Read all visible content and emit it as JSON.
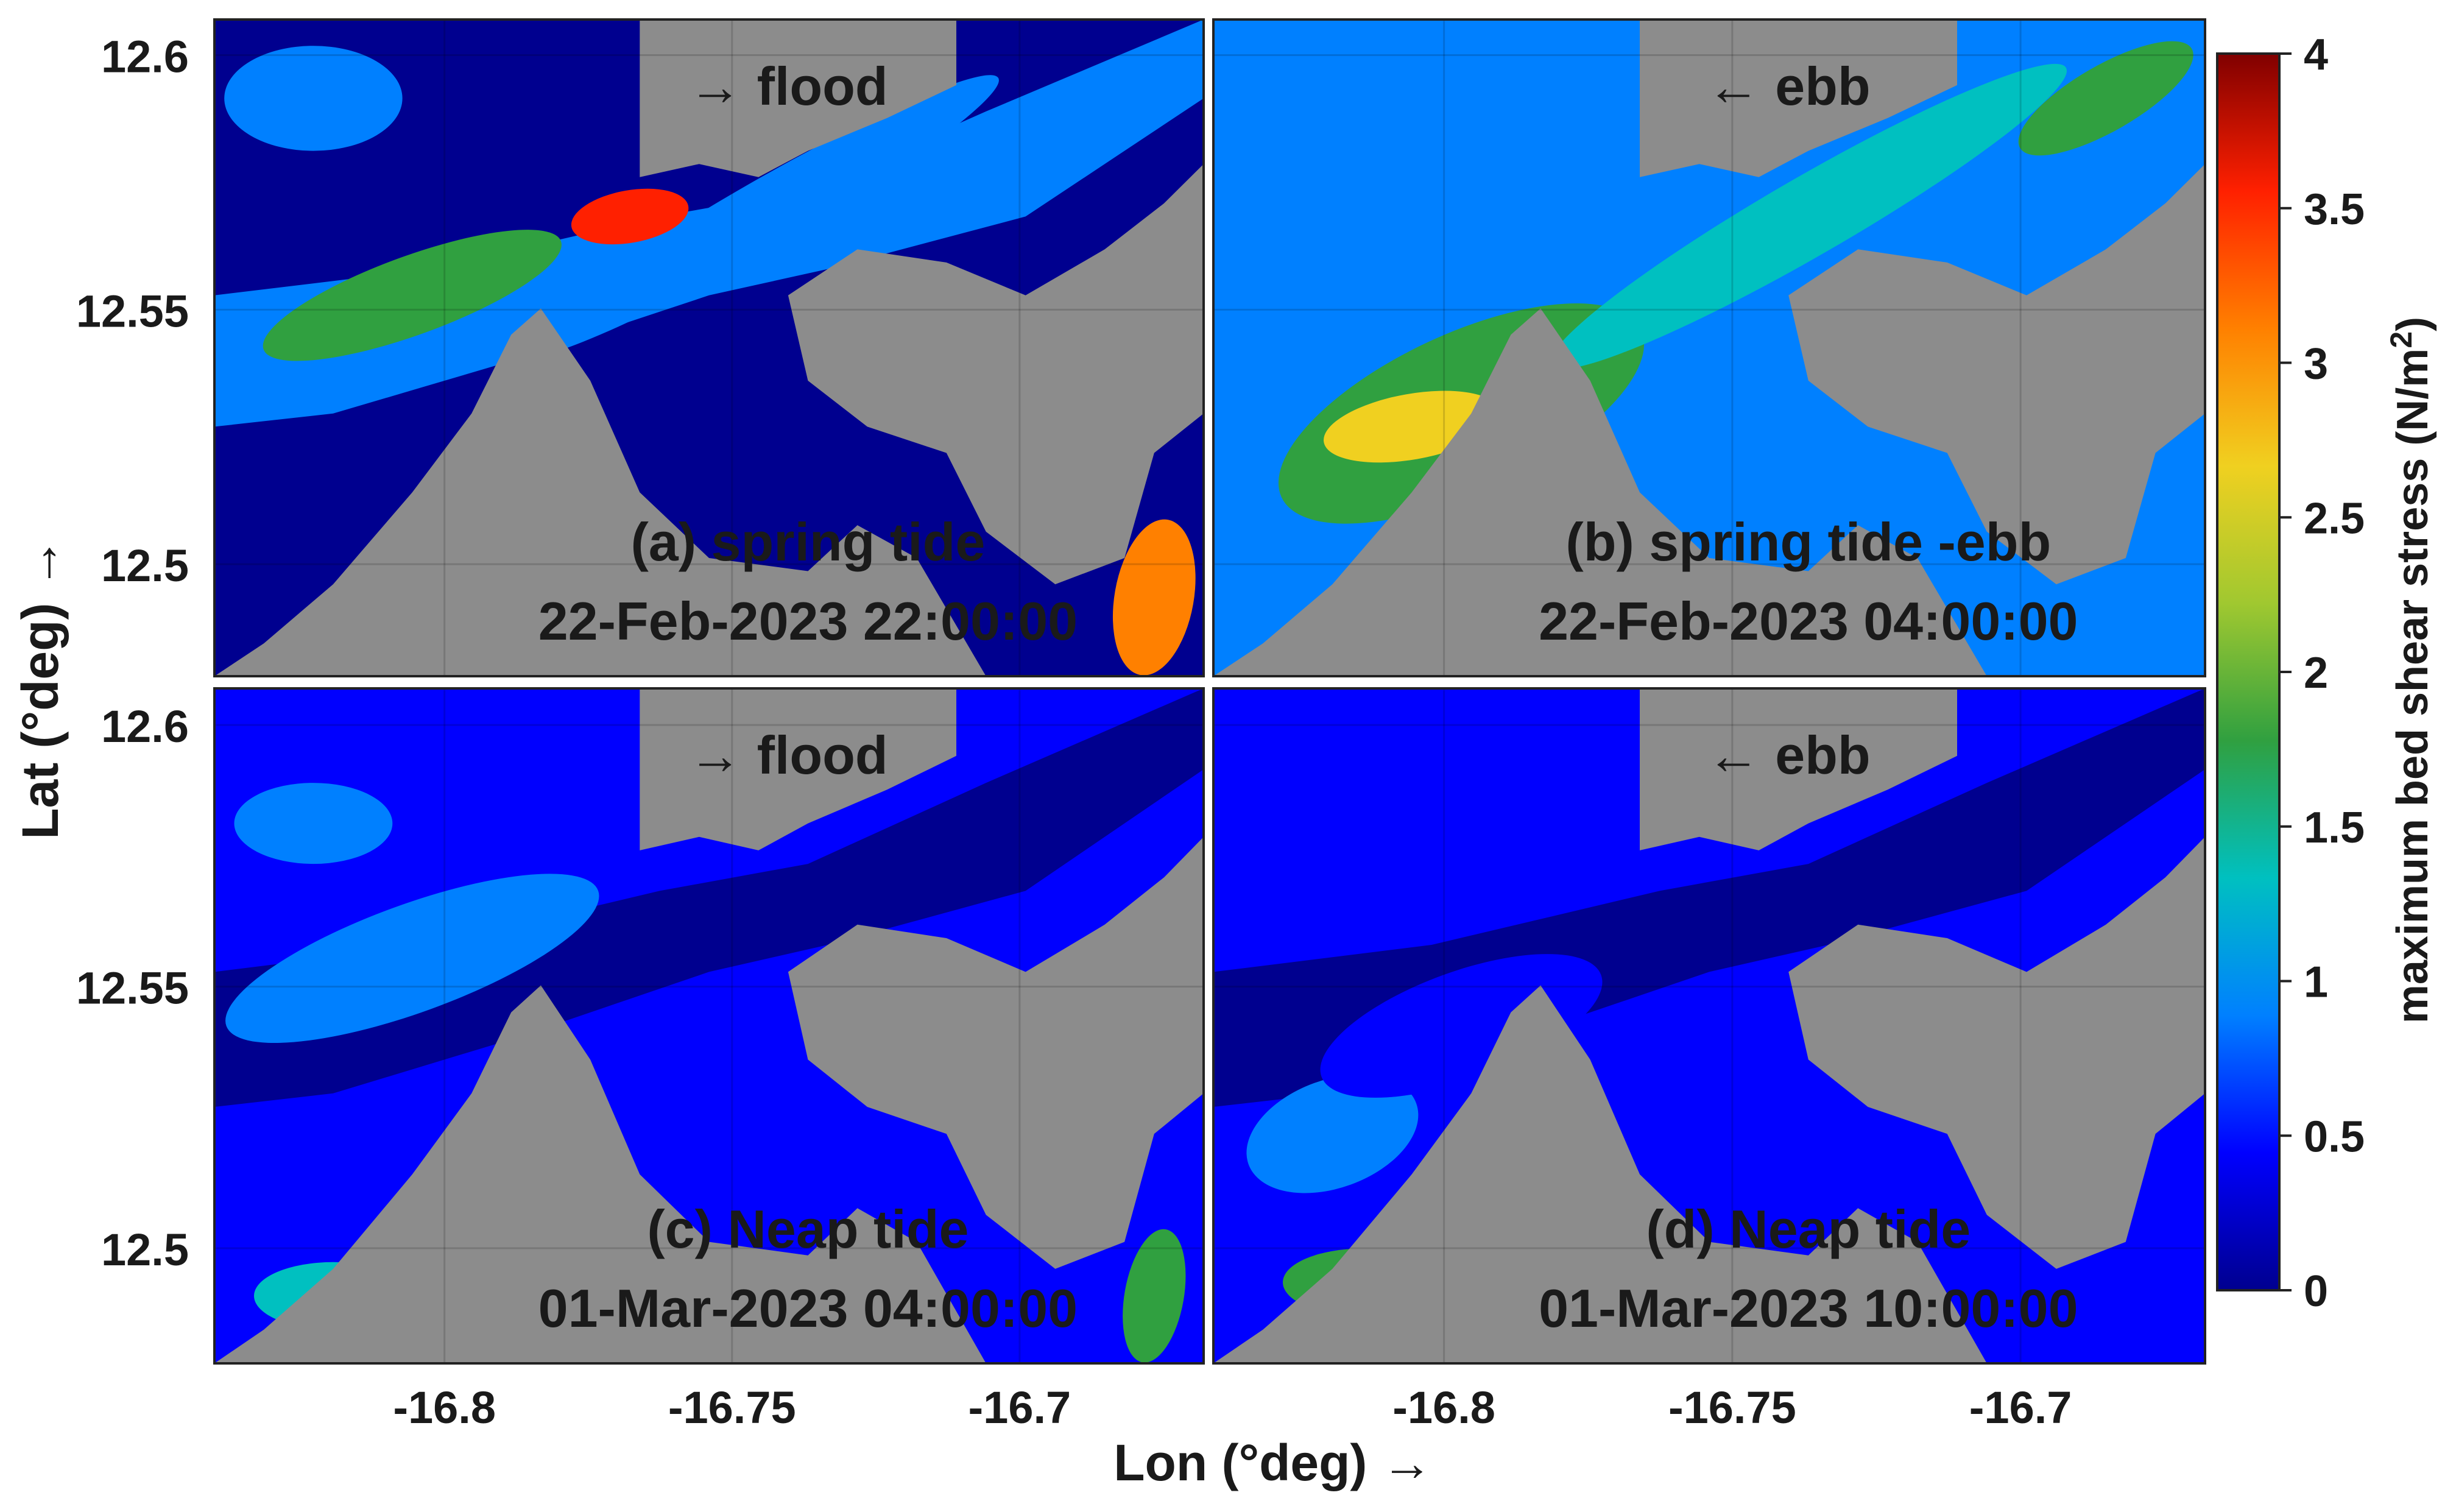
{
  "chart_data": {
    "type": "heatmap",
    "quantity": "maximum bed shear stress",
    "xlabel": "Lon (°deg) →",
    "ylabel": "Lat (°deg) →",
    "colorbar": {
      "label": "maximum bed shear stress (N/m",
      "label_sup": "2",
      "label_end": ")",
      "range": [
        0,
        4
      ],
      "ticks": [
        "0",
        "0.5",
        "1",
        "1.5",
        "2",
        "2.5",
        "3",
        "3.5",
        "4"
      ],
      "colormap": "jet",
      "stops": [
        "#00008f",
        "#0000ff",
        "#0080ff",
        "#00c0c0",
        "#30a040",
        "#a0c830",
        "#f0d020",
        "#ff8000",
        "#ff2000",
        "#800000"
      ]
    },
    "land_color": "#8c8c8c",
    "x_ticks": [
      "-16.8",
      "-16.75",
      "-16.7"
    ],
    "x_tick_values": [
      -16.8,
      -16.75,
      -16.7
    ],
    "y_ticks": [
      "12.6",
      "12.55",
      "12.5"
    ],
    "y_tick_values": [
      12.6,
      12.55,
      12.5
    ],
    "xlim": [
      -16.84,
      -16.668
    ],
    "ylim": [
      12.478,
      12.607
    ],
    "panels": [
      {
        "id": "a",
        "arrow": "→ flood",
        "title": "(a) spring tide",
        "time": "22-Feb-2023 22:00:00",
        "regime": "spring-flood"
      },
      {
        "id": "b",
        "arrow": "← ebb",
        "title": "(b) spring tide -ebb",
        "time": "22-Feb-2023 04:00:00",
        "regime": "spring-ebb"
      },
      {
        "id": "c",
        "arrow": "→ flood",
        "title": "(c) Neap tide",
        "time": "01-Mar-2023 04:00:00",
        "regime": "neap-flood"
      },
      {
        "id": "d",
        "arrow": "← ebb",
        "title": "(d) Neap tide",
        "time": "01-Mar-2023 10:00:00",
        "regime": "neap-ebb"
      }
    ]
  }
}
